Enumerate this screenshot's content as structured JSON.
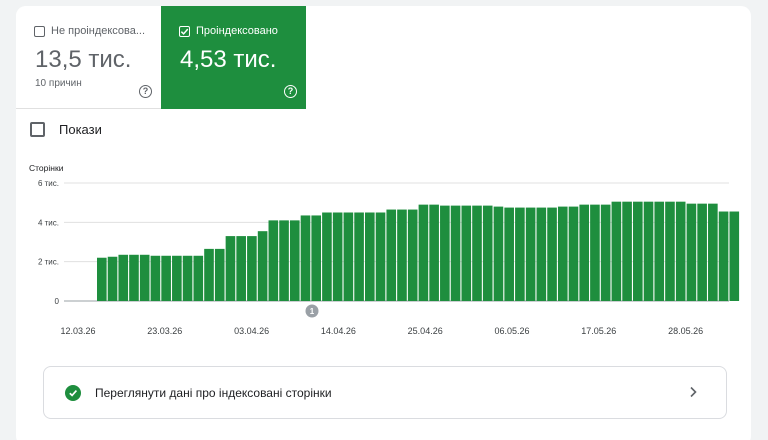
{
  "tiles": {
    "not_indexed": {
      "label": "Не проіндексова...",
      "value": "13,5 тис.",
      "sub": "10 причин",
      "checked": false
    },
    "indexed": {
      "label": "Проіндексовано",
      "value": "4,53 тис.",
      "checked": true
    }
  },
  "show_checkbox": {
    "label": "Покази",
    "checked": false
  },
  "link": {
    "label": "Переглянути дані про індексовані сторінки"
  },
  "chart_data": {
    "type": "bar",
    "ylabel": "Сторінки",
    "ylim": [
      0,
      6000
    ],
    "y_ticks": [
      {
        "value": 0,
        "label": "0"
      },
      {
        "value": 2000,
        "label": "2 тис."
      },
      {
        "value": 4000,
        "label": "4 тис."
      },
      {
        "value": 6000,
        "label": "6 тис."
      }
    ],
    "x_ticks": [
      "12.03.26",
      "23.03.26",
      "03.04.26",
      "14.04.26",
      "25.04.26",
      "06.05.26",
      "17.05.26",
      "28.05.26"
    ],
    "annotation": {
      "label": "1",
      "date": "12.04.26"
    },
    "color": "#1e8e3e",
    "grid": true,
    "values": [
      2200,
      2250,
      2350,
      2350,
      2350,
      2300,
      2300,
      2300,
      2300,
      2300,
      2650,
      2650,
      3300,
      3300,
      3300,
      3550,
      4100,
      4100,
      4100,
      4350,
      4350,
      4500,
      4500,
      4500,
      4500,
      4500,
      4500,
      4650,
      4650,
      4650,
      4900,
      4900,
      4850,
      4850,
      4850,
      4850,
      4850,
      4800,
      4750,
      4750,
      4750,
      4750,
      4750,
      4800,
      4800,
      4900,
      4900,
      4900,
      5050,
      5050,
      5050,
      5050,
      5050,
      5050,
      5050,
      4950,
      4950,
      4950,
      4550,
      4550
    ]
  }
}
